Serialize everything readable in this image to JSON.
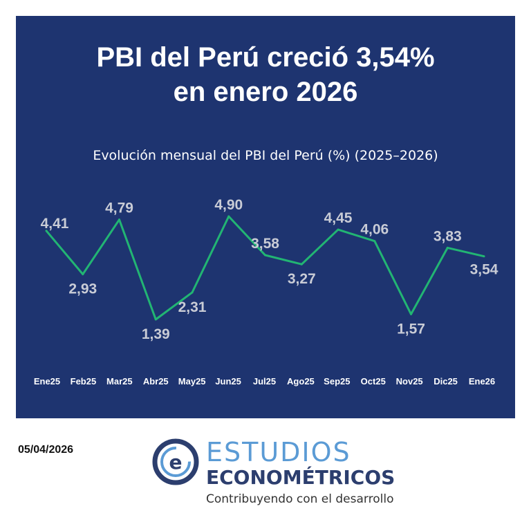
{
  "header": {
    "title_line1": "PBI del Perú creció 3,54%",
    "title_line2": "en enero 2026"
  },
  "chart_data": {
    "type": "line",
    "title": "Evolución mensual del PBI del Perú (%) (2025–2026)",
    "categories": [
      "Ene25",
      "Feb25",
      "Mar25",
      "Abr25",
      "May25",
      "Jun25",
      "Jul25",
      "Ago25",
      "Sep25",
      "Oct25",
      "Nov25",
      "Dic25",
      "Ene26"
    ],
    "series": [
      {
        "values": [
          4.41,
          2.93,
          4.79,
          1.39,
          2.31,
          4.9,
          3.58,
          3.27,
          4.45,
          4.06,
          1.57,
          3.83,
          3.54
        ]
      }
    ],
    "data_labels": [
      "4,41",
      "2,93",
      "4,79",
      "1,39",
      "2,31",
      "4,90",
      "3,58",
      "3,27",
      "4,45",
      "4,06",
      "1,57",
      "3,83",
      "3,54"
    ],
    "line_color": "#22b573",
    "label_color": "#c9ccd6",
    "grid": false,
    "legend": "none"
  },
  "footer": {
    "date": "05/04/2026",
    "brand_line1": "ESTUDIOS",
    "brand_line2": "ECONOMÉTRICOS",
    "tagline": "Contribuyendo con el desarrollo",
    "logo_icon": "e-circle-logo-icon",
    "brand_color": "#2c3e6e",
    "accent_color": "#5b9bd5"
  },
  "colors": {
    "panel_bg": "#1e3470"
  }
}
